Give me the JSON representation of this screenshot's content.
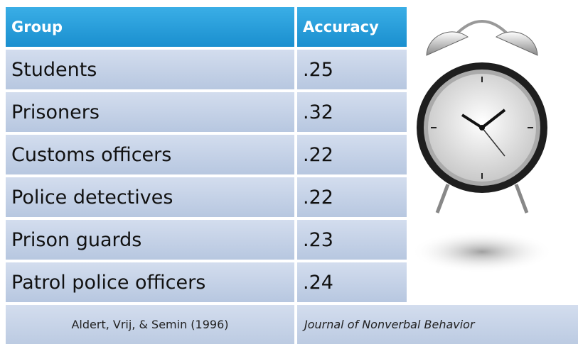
{
  "table": {
    "header": [
      "Group",
      "Accuracy"
    ],
    "rows": [
      [
        "Students",
        ".25"
      ],
      [
        "Prisoners",
        ".32"
      ],
      [
        "Customs officers",
        ".22"
      ],
      [
        "Police detectives",
        ".22"
      ],
      [
        "Prison guards",
        ".23"
      ],
      [
        "Patrol police officers",
        ".24"
      ]
    ],
    "citation": [
      "Aldert, Vrij, & Semin (1996)",
      "Journal of Nonverbal Behavior"
    ]
  }
}
